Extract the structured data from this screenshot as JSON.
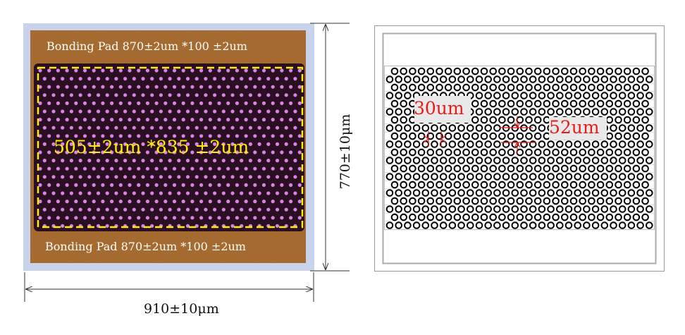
{
  "left_chip": {
    "pad_top_label": "Bonding Pad 870±2um *100 ±2um",
    "pad_bottom_label": "Bonding Pad 870±2um *100 ±2um",
    "array_label": "505±2um *835 ±2um",
    "height_dimension": "770±10μm",
    "width_dimension": "910±10μm"
  },
  "right_layout": {
    "hole_diameter_label": "30um",
    "pitch_label": "52um"
  },
  "colors": {
    "pad": "#a7642a",
    "frame": "#c9d3ec",
    "array_bg": "#2a0f22",
    "dot": "#d884e0",
    "dash": "#ffee00",
    "annotation": "#e81b1b"
  }
}
